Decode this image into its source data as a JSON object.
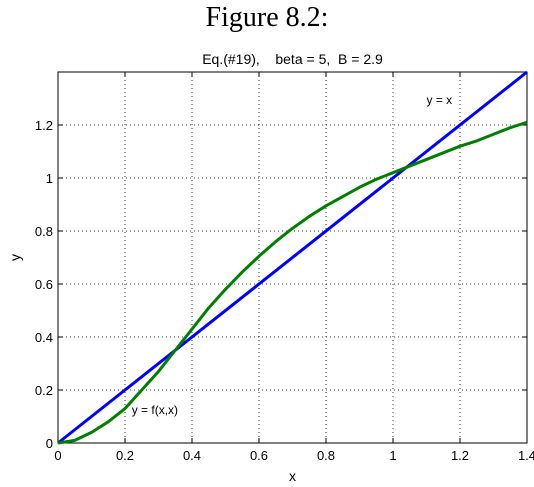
{
  "figure_title": "Figure 8.2:",
  "chart_data": {
    "type": "line",
    "title": "Eq.(#19),    beta = 5,  B = 2.9",
    "xlabel": "x",
    "ylabel": "y",
    "xlim": [
      0,
      1.4
    ],
    "ylim": [
      0,
      1.4
    ],
    "x_ticks": [
      0,
      0.2,
      0.4,
      0.6,
      0.8,
      1.0,
      1.2,
      1.4
    ],
    "x_tick_labels": [
      "0",
      "0.2",
      "0.4",
      "0.6",
      "0.8",
      "1",
      "1.2",
      "1.4"
    ],
    "y_ticks": [
      0,
      0.2,
      0.4,
      0.6,
      0.8,
      1.0,
      1.2
    ],
    "y_tick_labels": [
      "0",
      "0.2",
      "0.4",
      "0.6",
      "0.8",
      "1",
      "1.2"
    ],
    "grid": true,
    "grid_style": "dotted",
    "series": [
      {
        "color": "#0000ff",
        "x": [
          0,
          1.4
        ],
        "y": [
          0,
          1.4
        ]
      },
      {
        "color": "#008000",
        "x": [
          0,
          0.05,
          0.1,
          0.15,
          0.2,
          0.25,
          0.3,
          0.35,
          0.4,
          0.45,
          0.5,
          0.55,
          0.6,
          0.65,
          0.7,
          0.75,
          0.8,
          0.85,
          0.9,
          0.95,
          1.0,
          1.05,
          1.1,
          1.15,
          1.2,
          1.25,
          1.3,
          1.35,
          1.4
        ],
        "y": [
          0,
          0.01,
          0.04,
          0.08,
          0.13,
          0.2,
          0.27,
          0.35,
          0.43,
          0.51,
          0.58,
          0.645,
          0.705,
          0.76,
          0.81,
          0.855,
          0.895,
          0.93,
          0.965,
          0.995,
          1.02,
          1.045,
          1.07,
          1.095,
          1.12,
          1.14,
          1.165,
          1.19,
          1.21
        ]
      }
    ],
    "annotations": [
      {
        "text": "y = x",
        "x": 1.1,
        "y": 1.28
      },
      {
        "text": "y = f(x,x)",
        "x": 0.22,
        "y": 0.11
      }
    ]
  }
}
